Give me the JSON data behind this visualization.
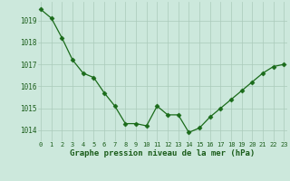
{
  "x": [
    0,
    1,
    2,
    3,
    4,
    5,
    6,
    7,
    8,
    9,
    10,
    11,
    12,
    13,
    14,
    15,
    16,
    17,
    18,
    19,
    20,
    21,
    22,
    23
  ],
  "y": [
    1019.5,
    1019.1,
    1018.2,
    1017.2,
    1016.6,
    1016.4,
    1015.7,
    1015.1,
    1014.3,
    1014.3,
    1014.2,
    1015.1,
    1014.7,
    1014.7,
    1013.9,
    1014.1,
    1014.6,
    1015.0,
    1015.4,
    1015.8,
    1016.2,
    1016.6,
    1016.9,
    1017.0
  ],
  "line_color": "#1a6b1a",
  "marker": "D",
  "marker_size": 2.5,
  "bg_color": "#cce8dc",
  "grid_color": "#aacaba",
  "xlabel": "Graphe pression niveau de la mer (hPa)",
  "xlabel_color": "#1a5c1a",
  "tick_color": "#1a5c1a",
  "ylim": [
    1013.5,
    1019.85
  ],
  "yticks": [
    1014,
    1015,
    1016,
    1017,
    1018,
    1019
  ],
  "xticks": [
    0,
    1,
    2,
    3,
    4,
    5,
    6,
    7,
    8,
    9,
    10,
    11,
    12,
    13,
    14,
    15,
    16,
    17,
    18,
    19,
    20,
    21,
    22,
    23
  ],
  "xlim": [
    -0.3,
    23.3
  ]
}
